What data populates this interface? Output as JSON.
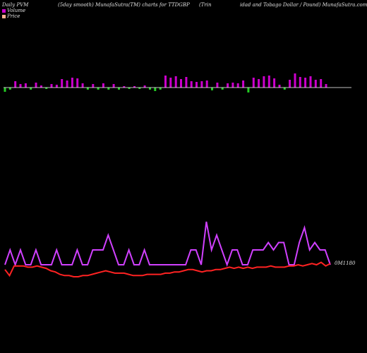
{
  "header": {
    "left": "Daily PVM",
    "center": "(5day smooth) MunafaSutra(TM) charts for TTDGBP",
    "right_a": "(Trin",
    "right_b": "idad and Tobago  Dollar / Pound) MunafaSutra.com"
  },
  "colors": {
    "background": "#000000",
    "volume_up": "#cc00cc",
    "volume_down": "#22cc22",
    "pvm_line": "#d040ff",
    "price_line": "#ff2222",
    "baseline": "#ffffff"
  },
  "chart_data": {
    "type": "bar+line",
    "legend": [
      {
        "name": "Volume",
        "color": "#cc00cc"
      },
      {
        "name": "Price",
        "color": "#ffb090"
      }
    ],
    "last_price_label": "0M1180",
    "volume": [
      {
        "h": 6,
        "d": 1
      },
      {
        "h": 3,
        "d": 1
      },
      {
        "h": 9,
        "d": 0
      },
      {
        "h": 5,
        "d": 0
      },
      {
        "h": 6,
        "d": 0
      },
      {
        "h": 3,
        "d": 1
      },
      {
        "h": 7,
        "d": 0
      },
      {
        "h": 3,
        "d": 0
      },
      {
        "h": 2,
        "d": 1
      },
      {
        "h": 5,
        "d": 0
      },
      {
        "h": 4,
        "d": 0
      },
      {
        "h": 12,
        "d": 0
      },
      {
        "h": 10,
        "d": 0
      },
      {
        "h": 14,
        "d": 0
      },
      {
        "h": 13,
        "d": 0
      },
      {
        "h": 6,
        "d": 0
      },
      {
        "h": 3,
        "d": 1
      },
      {
        "h": 5,
        "d": 0
      },
      {
        "h": 3,
        "d": 1
      },
      {
        "h": 6,
        "d": 0
      },
      {
        "h": 3,
        "d": 1
      },
      {
        "h": 5,
        "d": 0
      },
      {
        "h": 3,
        "d": 1
      },
      {
        "h": 2,
        "d": 0
      },
      {
        "h": 2,
        "d": 1
      },
      {
        "h": 2,
        "d": 0
      },
      {
        "h": 2,
        "d": 1
      },
      {
        "h": 3,
        "d": 0
      },
      {
        "h": 3,
        "d": 1
      },
      {
        "h": 5,
        "d": 1
      },
      {
        "h": 3,
        "d": 1
      },
      {
        "h": 17,
        "d": 0
      },
      {
        "h": 14,
        "d": 0
      },
      {
        "h": 16,
        "d": 0
      },
      {
        "h": 12,
        "d": 0
      },
      {
        "h": 15,
        "d": 0
      },
      {
        "h": 9,
        "d": 0
      },
      {
        "h": 8,
        "d": 0
      },
      {
        "h": 9,
        "d": 0
      },
      {
        "h": 10,
        "d": 0
      },
      {
        "h": 4,
        "d": 1
      },
      {
        "h": 7,
        "d": 0
      },
      {
        "h": 3,
        "d": 1
      },
      {
        "h": 6,
        "d": 0
      },
      {
        "h": 7,
        "d": 0
      },
      {
        "h": 6,
        "d": 0
      },
      {
        "h": 10,
        "d": 0
      },
      {
        "h": 7,
        "d": 1
      },
      {
        "h": 14,
        "d": 0
      },
      {
        "h": 12,
        "d": 0
      },
      {
        "h": 16,
        "d": 0
      },
      {
        "h": 17,
        "d": 0
      },
      {
        "h": 13,
        "d": 0
      },
      {
        "h": 4,
        "d": 0
      },
      {
        "h": 3,
        "d": 1
      },
      {
        "h": 11,
        "d": 0
      },
      {
        "h": 20,
        "d": 0
      },
      {
        "h": 15,
        "d": 0
      },
      {
        "h": 14,
        "d": 0
      },
      {
        "h": 16,
        "d": 0
      },
      {
        "h": 11,
        "d": 0
      },
      {
        "h": 12,
        "d": 0
      },
      {
        "h": 5,
        "d": 0
      }
    ],
    "pvm": [
      2,
      4,
      2,
      4,
      2,
      2,
      4,
      2,
      2,
      2,
      4,
      2,
      2,
      2,
      4,
      2,
      2,
      4,
      4,
      4,
      6,
      4,
      2,
      2,
      4,
      2,
      2,
      4,
      2,
      2,
      2,
      2,
      2,
      2,
      2,
      2,
      4,
      4,
      2,
      8,
      4,
      6,
      4,
      2,
      4,
      4,
      2,
      2,
      4,
      4,
      4,
      5,
      4,
      5,
      5,
      2,
      2,
      5,
      7,
      4,
      5,
      4,
      4,
      2
    ],
    "price": [
      2.3,
      1.8,
      2.6,
      2.6,
      2.6,
      2.5,
      2.5,
      2.6,
      2.5,
      2.4,
      2.2,
      2.1,
      1.9,
      1.8,
      1.8,
      1.7,
      1.7,
      1.8,
      1.8,
      1.9,
      2.0,
      2.1,
      2.2,
      2.1,
      2.0,
      2.0,
      2.0,
      1.9,
      1.8,
      1.8,
      1.8,
      1.9,
      1.9,
      1.9,
      1.9,
      2.0,
      2.0,
      2.1,
      2.1,
      2.2,
      2.3,
      2.3,
      2.2,
      2.1,
      2.2,
      2.2,
      2.3,
      2.3,
      2.4,
      2.5,
      2.4,
      2.5,
      2.4,
      2.5,
      2.4,
      2.5,
      2.5,
      2.5,
      2.6,
      2.5,
      2.5,
      2.5,
      2.6,
      2.6,
      2.7,
      2.6,
      2.7,
      2.8,
      2.7,
      2.9,
      2.6,
      2.8
    ]
  }
}
